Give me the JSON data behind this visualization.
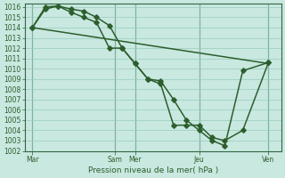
{
  "background_color": "#c8e8e0",
  "plot_bg_color": "#c8e8e0",
  "grid_color": "#99ccbb",
  "line_color": "#2d5e2d",
  "xlabel": "Pression niveau de la mer( hPa )",
  "ylim_min": 1002,
  "ylim_max": 1016,
  "xlim_min": 0,
  "xlim_max": 10,
  "xtick_labels": [
    "Mar",
    "Sam",
    "Mer",
    "Jeu",
    "Ven"
  ],
  "xtick_positions": [
    0.3,
    3.5,
    4.3,
    6.8,
    9.5
  ],
  "line1_x": [
    0.3,
    0.8,
    1.3,
    1.8,
    2.3,
    2.8,
    3.3,
    3.8,
    4.3,
    4.8,
    5.3,
    5.8,
    6.3,
    6.8,
    7.3,
    7.8,
    8.5,
    9.5
  ],
  "line1_y": [
    1014.0,
    1015.8,
    1016.1,
    1015.8,
    1015.6,
    1015.0,
    1014.2,
    1012.0,
    1010.5,
    1009.0,
    1008.8,
    1007.0,
    1005.0,
    1004.0,
    1003.0,
    1002.5,
    1009.8,
    1010.6
  ],
  "line2_x": [
    0.3,
    0.8,
    1.3,
    1.8,
    2.3,
    2.8,
    3.3,
    3.8,
    4.3,
    4.8,
    5.3,
    5.8,
    6.3,
    6.8,
    7.3,
    7.8,
    8.5,
    9.5
  ],
  "line2_y": [
    1014.0,
    1016.0,
    1016.1,
    1015.5,
    1015.0,
    1014.5,
    1012.0,
    1012.0,
    1010.5,
    1009.0,
    1008.5,
    1004.5,
    1004.5,
    1004.5,
    1003.3,
    1003.0,
    1004.0,
    1010.6
  ],
  "line3_x": [
    0.3,
    9.5
  ],
  "line3_y": [
    1014.0,
    1010.5
  ],
  "marker_size": 2.8,
  "line_width": 1.1,
  "font_size_ticks": 5.5,
  "font_size_xlabel": 6.5,
  "vline_x": [
    0.3,
    3.5,
    4.3,
    6.8,
    9.5
  ]
}
